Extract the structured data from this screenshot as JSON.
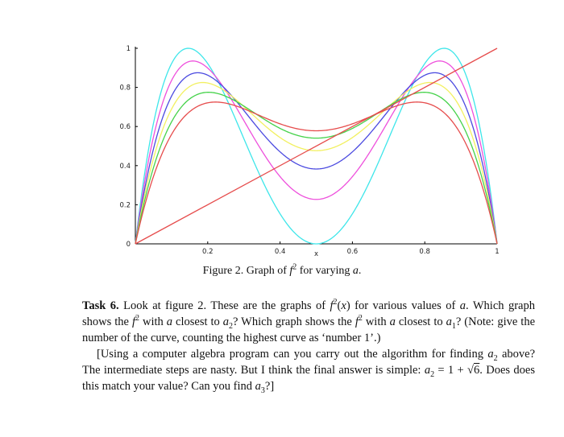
{
  "chart_data": {
    "type": "line",
    "xlabel": "x",
    "ylabel": "",
    "xlim": [
      0,
      1
    ],
    "ylim": [
      0,
      1
    ],
    "x_ticks": [
      0.2,
      0.4,
      0.6,
      0.8,
      1
    ],
    "x_tick_labels": [
      "0.2",
      "0.4",
      "0.6",
      "0.8",
      "1"
    ],
    "y_ticks": [
      0,
      0.2,
      0.4,
      0.6,
      0.8,
      1
    ],
    "y_tick_labels": [
      "0",
      "0.2",
      "0.4",
      "0.6",
      "0.8",
      "1"
    ],
    "grid": false,
    "series": [
      {
        "color": "#3ee6ea",
        "a": 4.0,
        "peak": 1.0,
        "min": 0.0
      },
      {
        "color": "#ee4fdc",
        "a": 3.74,
        "peak": 0.935,
        "min": 0.22
      },
      {
        "color": "#4b4ae0",
        "a": 3.5,
        "peak": 0.875,
        "min": 0.38
      },
      {
        "color": "#f2f060",
        "a": 3.3,
        "peak": 0.825,
        "min": 0.48
      },
      {
        "color": "#45d24a",
        "a": 3.1,
        "peak": 0.775,
        "min": 0.55
      },
      {
        "color": "#e64c4c",
        "a": 2.9,
        "peak": 0.69,
        "min": 0.59
      },
      {
        "color": "#e64c4c",
        "type": "diagonal",
        "x": [
          0,
          1
        ],
        "y": [
          0,
          1
        ]
      }
    ]
  },
  "caption": {
    "prefix": "Figure 2.  Graph of ",
    "f": "f",
    "sup": "2",
    "suffix": " for varying ",
    "a": "a",
    "end": "."
  },
  "task": {
    "label": "Task 6.",
    "p1_a": " Look at figure 2.  These are the graphs of ",
    "p1_b": " for various values of ",
    "p1_c": ".  Which graph shows the ",
    "p1_d": " with ",
    "p1_e": " closest to ",
    "p1_f": "?  Which graph shows the ",
    "p1_g": " with ",
    "p1_h": " closest to ",
    "p1_i": "?  (Note: give the number of the curve, counting the highest curve as ‘number 1’.)",
    "p2_a": "[Using a computer algebra program can you carry out the algorithm for finding ",
    "p2_b": " above?  The intermediate steps are nasty.  But I think the final answer is simple: ",
    "p2_c": " = 1 + √",
    "p2_d": "6",
    "p2_e": ".  Does does this match your value?  Can you find ",
    "p2_f": "?]"
  }
}
